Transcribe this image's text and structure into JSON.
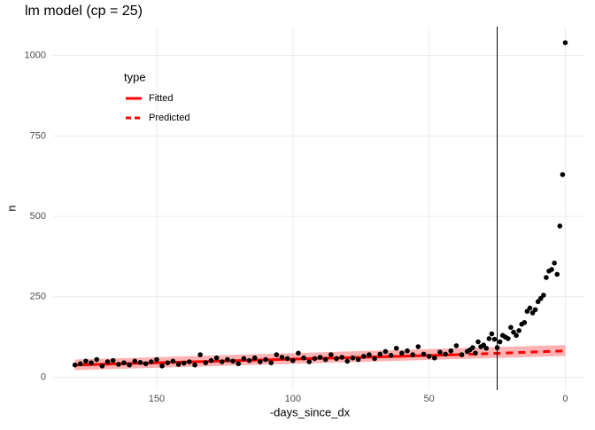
{
  "chart_data": {
    "type": "scatter",
    "title": "lm model (cp = 25)",
    "x_label": "-days_since_dx",
    "y_label": "n",
    "xlim": [
      188,
      -7
    ],
    "xticks": [
      150,
      100,
      50,
      0
    ],
    "ylim": [
      -40,
      1090
    ],
    "yticks": [
      0,
      250,
      500,
      750,
      1000
    ],
    "grid": true,
    "vline": 25,
    "point_color": "#000000",
    "points": {
      "x": [
        180,
        178,
        176,
        174,
        172,
        170,
        168,
        166,
        164,
        162,
        160,
        158,
        156,
        154,
        152,
        150,
        148,
        146,
        144,
        142,
        140,
        138,
        136,
        134,
        132,
        130,
        128,
        126,
        124,
        122,
        120,
        118,
        116,
        114,
        112,
        110,
        108,
        106,
        104,
        102,
        100,
        98,
        96,
        94,
        92,
        90,
        88,
        86,
        84,
        82,
        80,
        78,
        76,
        74,
        72,
        70,
        68,
        66,
        64,
        62,
        60,
        58,
        56,
        54,
        52,
        50,
        48,
        46,
        44,
        42,
        40,
        38,
        36,
        35,
        34,
        33,
        32,
        31,
        30,
        29,
        28,
        27,
        26,
        25,
        24,
        23,
        22,
        21,
        20,
        19,
        18,
        17,
        16,
        15,
        14,
        13,
        12,
        11,
        10,
        9,
        8,
        7,
        6,
        5,
        4,
        3,
        2,
        1,
        0
      ],
      "values": [
        38,
        42,
        50,
        45,
        55,
        35,
        48,
        52,
        40,
        45,
        38,
        50,
        46,
        42,
        48,
        55,
        35,
        45,
        50,
        40,
        44,
        48,
        38,
        70,
        45,
        52,
        60,
        48,
        55,
        50,
        42,
        58,
        52,
        60,
        48,
        55,
        45,
        70,
        62,
        58,
        52,
        75,
        60,
        48,
        58,
        62,
        55,
        70,
        58,
        62,
        50,
        60,
        55,
        65,
        70,
        58,
        72,
        80,
        68,
        90,
        75,
        82,
        70,
        95,
        72,
        65,
        60,
        78,
        72,
        82,
        98,
        70,
        80,
        85,
        92,
        75,
        110,
        95,
        100,
        90,
        120,
        135,
        118,
        92,
        110,
        130,
        125,
        120,
        155,
        140,
        130,
        145,
        165,
        170,
        205,
        215,
        200,
        210,
        235,
        245,
        255,
        310,
        330,
        335,
        355,
        320,
        470,
        630,
        1040
      ]
    },
    "band": {
      "x": [
        180,
        0
      ],
      "lower": [
        22,
        66
      ],
      "upper": [
        55,
        100
      ],
      "color": "#ff0000"
    },
    "legend_title": "type",
    "series": [
      {
        "name": "Fitted",
        "color": "#ff0000",
        "dashed": false,
        "x": [
          180,
          40
        ],
        "values": [
          38,
          70
        ]
      },
      {
        "name": "Predicted",
        "color": "#ff0000",
        "dashed": true,
        "x": [
          40,
          0
        ],
        "values": [
          70,
          82
        ]
      }
    ]
  }
}
